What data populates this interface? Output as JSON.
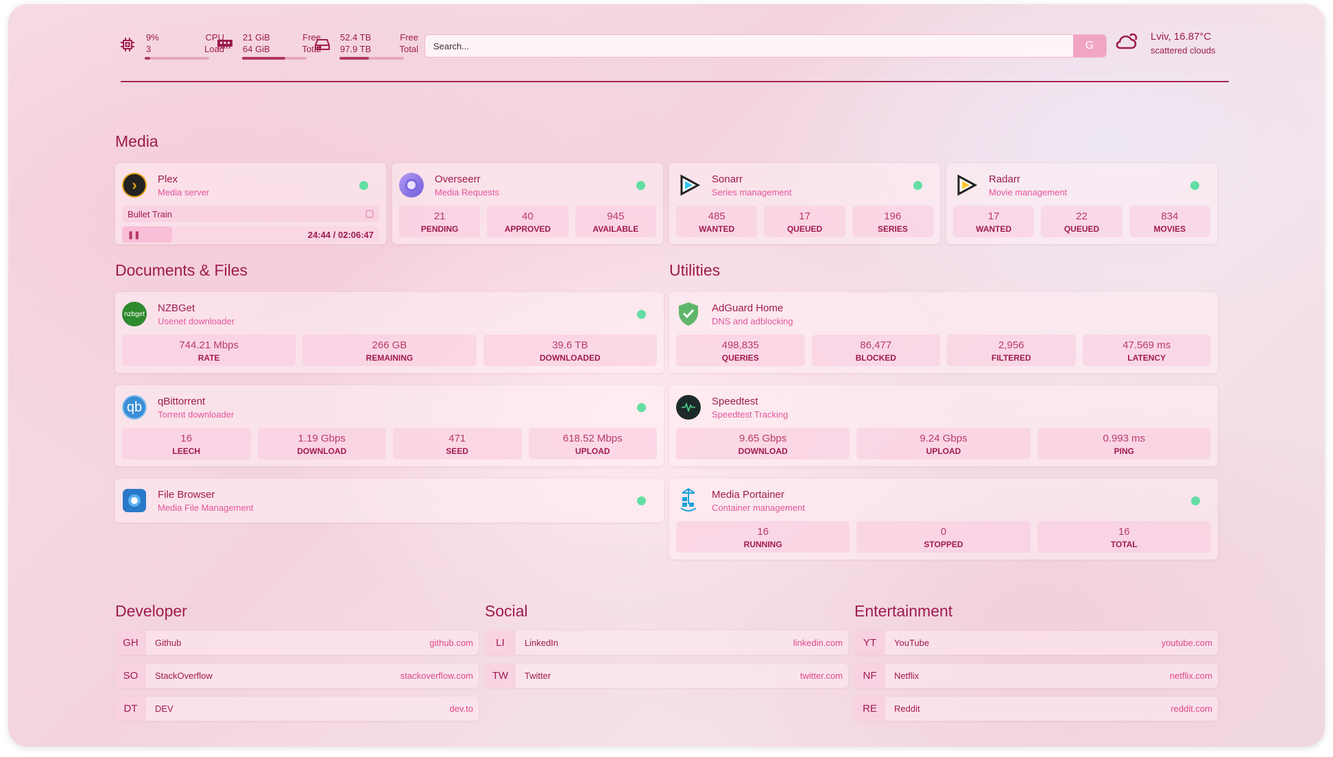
{
  "header": {
    "cpu": {
      "icon": "cpu-icon",
      "value": "9%",
      "sub": "3",
      "label": "CPU",
      "sublabel": "Load",
      "fill": 0.09
    },
    "memory": {
      "icon": "memory-icon",
      "value": "21 GiB",
      "sub": "64 GiB",
      "label": "Free",
      "sublabel": "Total",
      "fill": 0.67
    },
    "disk": {
      "icon": "disk-icon",
      "value": "52.4 TB",
      "sub": "97.9 TB",
      "label": "Free",
      "sublabel": "Total",
      "fill": 0.46
    },
    "search": {
      "placeholder": "Search...",
      "button": "G"
    },
    "weather": {
      "icon": "cloud-sun-icon",
      "location": "Lviv, 16.87°C",
      "condition": "scattered clouds"
    }
  },
  "sections": {
    "media": "Media",
    "docs": "Documents & Files",
    "utilities": "Utilities",
    "developer": "Developer",
    "social": "Social",
    "entertainment": "Entertainment"
  },
  "media": [
    {
      "name": "Plex",
      "desc": "Media server",
      "icon": "plex-icon",
      "status": "online",
      "now_playing": {
        "title": "Bullet Train",
        "time": "24:44 / 02:06:47",
        "progress": 0.195,
        "state": "paused"
      }
    },
    {
      "name": "Overseerr",
      "desc": "Media Requests",
      "icon": "overseerr-icon",
      "status": "online",
      "stats": [
        {
          "v": "21",
          "l": "PENDING"
        },
        {
          "v": "40",
          "l": "APPROVED"
        },
        {
          "v": "945",
          "l": "AVAILABLE"
        }
      ]
    },
    {
      "name": "Sonarr",
      "desc": "Series management",
      "icon": "sonarr-icon",
      "status": "online",
      "stats": [
        {
          "v": "485",
          "l": "WANTED"
        },
        {
          "v": "17",
          "l": "QUEUED"
        },
        {
          "v": "196",
          "l": "SERIES"
        }
      ]
    },
    {
      "name": "Radarr",
      "desc": "Movie management",
      "icon": "radarr-icon",
      "status": "online",
      "stats": [
        {
          "v": "17",
          "l": "WANTED"
        },
        {
          "v": "22",
          "l": "QUEUED"
        },
        {
          "v": "834",
          "l": "MOVIES"
        }
      ]
    }
  ],
  "docs": [
    {
      "name": "NZBGet",
      "desc": "Usenet downloader",
      "icon": "nzbget-icon",
      "logo_text": "nzbget",
      "status": "online",
      "stats": [
        {
          "v": "744.21 Mbps",
          "l": "RATE"
        },
        {
          "v": "266 GB",
          "l": "REMAINING"
        },
        {
          "v": "39.6 TB",
          "l": "DOWNLOADED"
        }
      ]
    },
    {
      "name": "qBittorrent",
      "desc": "Torrent downloader",
      "icon": "qbittorrent-icon",
      "logo_text": "qb",
      "status": "online",
      "stats": [
        {
          "v": "16",
          "l": "LEECH"
        },
        {
          "v": "1.19 Gbps",
          "l": "DOWNLOAD"
        },
        {
          "v": "471",
          "l": "SEED"
        },
        {
          "v": "618.52 Mbps",
          "l": "UPLOAD"
        }
      ]
    },
    {
      "name": "File Browser",
      "desc": "Media File Management",
      "icon": "filebrowser-icon",
      "status": "online"
    }
  ],
  "utilities": [
    {
      "name": "AdGuard Home",
      "desc": "DNS and adblocking",
      "icon": "adguard-shield-icon",
      "stats": [
        {
          "v": "498,835",
          "l": "QUERIES"
        },
        {
          "v": "86,477",
          "l": "BLOCKED"
        },
        {
          "v": "2,956",
          "l": "FILTERED"
        },
        {
          "v": "47.569 ms",
          "l": "LATENCY"
        }
      ]
    },
    {
      "name": "Speedtest",
      "desc": "Speedtest Tracking",
      "icon": "speedtest-icon",
      "stats": [
        {
          "v": "9.65 Gbps",
          "l": "DOWNLOAD"
        },
        {
          "v": "9.24 Gbps",
          "l": "UPLOAD"
        },
        {
          "v": "0.993 ms",
          "l": "PING"
        }
      ]
    },
    {
      "name": "Media Portainer",
      "desc": "Container management",
      "icon": "portainer-icon",
      "status": "online",
      "stats": [
        {
          "v": "16",
          "l": "RUNNING"
        },
        {
          "v": "0",
          "l": "STOPPED"
        },
        {
          "v": "16",
          "l": "TOTAL"
        }
      ]
    }
  ],
  "bookmarks": {
    "developer": [
      {
        "abbr": "GH",
        "name": "Github",
        "url": "github.com"
      },
      {
        "abbr": "SO",
        "name": "StackOverflow",
        "url": "stackoverflow.com"
      },
      {
        "abbr": "DT",
        "name": "DEV",
        "url": "dev.to"
      }
    ],
    "social": [
      {
        "abbr": "LI",
        "name": "LinkedIn",
        "url": "linkedin.com"
      },
      {
        "abbr": "TW",
        "name": "Twitter",
        "url": "twitter.com"
      }
    ],
    "entertainment": [
      {
        "abbr": "YT",
        "name": "YouTube",
        "url": "youtube.com"
      },
      {
        "abbr": "NF",
        "name": "Netflix",
        "url": "netflix.com"
      },
      {
        "abbr": "RE",
        "name": "Reddit",
        "url": "reddit.com"
      }
    ]
  },
  "colors": {
    "accent": "#9d1a4c",
    "subtitle": "#e4559b",
    "status_online": "#62dea2",
    "search_button": "#f0a5c2"
  }
}
